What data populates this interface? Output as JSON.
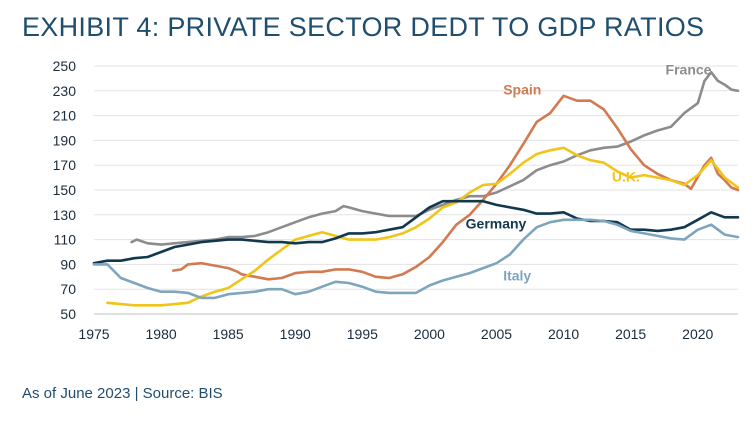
{
  "title": "EXHIBIT 4: PRIVATE SECTOR DEDT TO GDP RATIOS",
  "footnote": "As of June 2023 | Source: BIS",
  "chart_data": {
    "type": "line",
    "title": "EXHIBIT 4: PRIVATE SECTOR DEDT TO GDP RATIOS",
    "xlabel": "",
    "ylabel": "",
    "xlim": [
      1975,
      2023
    ],
    "ylim": [
      50,
      250
    ],
    "x_ticks": [
      "1975",
      "1980",
      "1985",
      "1990",
      "1995",
      "2000",
      "2005",
      "2010",
      "2015",
      "2020"
    ],
    "y_ticks": [
      "50",
      "70",
      "90",
      "110",
      "130",
      "150",
      "170",
      "190",
      "210",
      "230",
      "250"
    ],
    "grid": "horizontal",
    "series": [
      {
        "name": "France",
        "color": "#8c8c8c",
        "points": [
          [
            1977.8,
            108
          ],
          [
            1978.2,
            110
          ],
          [
            1979,
            107
          ],
          [
            1980,
            106
          ],
          [
            1981,
            107
          ],
          [
            1982,
            108
          ],
          [
            1983,
            109
          ],
          [
            1984,
            110
          ],
          [
            1985,
            112
          ],
          [
            1986,
            112
          ],
          [
            1987,
            113
          ],
          [
            1988,
            116
          ],
          [
            1989,
            120
          ],
          [
            1990,
            124
          ],
          [
            1991,
            128
          ],
          [
            1992,
            131
          ],
          [
            1993,
            133
          ],
          [
            1993.6,
            137
          ],
          [
            1994,
            136
          ],
          [
            1995,
            133
          ],
          [
            1996,
            131
          ],
          [
            1997,
            129
          ],
          [
            1998,
            129
          ],
          [
            1999,
            129
          ],
          [
            2000,
            134
          ],
          [
            2001,
            138
          ],
          [
            2002,
            142
          ],
          [
            2003,
            145
          ],
          [
            2004,
            145
          ],
          [
            2005,
            148
          ],
          [
            2006,
            153
          ],
          [
            2007,
            158
          ],
          [
            2008,
            166
          ],
          [
            2009,
            170
          ],
          [
            2010,
            173
          ],
          [
            2011,
            178
          ],
          [
            2012,
            182
          ],
          [
            2013,
            184
          ],
          [
            2014,
            185
          ],
          [
            2015,
            189
          ],
          [
            2016,
            194
          ],
          [
            2017,
            198
          ],
          [
            2018,
            201
          ],
          [
            2019,
            212
          ],
          [
            2020,
            220
          ],
          [
            2020.5,
            238
          ],
          [
            2021,
            245
          ],
          [
            2021.5,
            238
          ],
          [
            2022,
            235
          ],
          [
            2022.5,
            231
          ],
          [
            2023,
            230
          ]
        ]
      },
      {
        "name": "Spain",
        "color": "#d37a50",
        "points": [
          [
            1980.9,
            85
          ],
          [
            1981.5,
            86
          ],
          [
            1982,
            90
          ],
          [
            1983,
            91
          ],
          [
            1984,
            89
          ],
          [
            1985,
            87
          ],
          [
            1985.7,
            84
          ],
          [
            1986,
            82
          ],
          [
            1987,
            80
          ],
          [
            1988,
            78
          ],
          [
            1989,
            79
          ],
          [
            1990,
            83
          ],
          [
            1991,
            84
          ],
          [
            1992,
            84
          ],
          [
            1993,
            86
          ],
          [
            1994,
            86
          ],
          [
            1995,
            84
          ],
          [
            1996,
            80
          ],
          [
            1997,
            79
          ],
          [
            1998,
            82
          ],
          [
            1999,
            88
          ],
          [
            2000,
            96
          ],
          [
            2001,
            108
          ],
          [
            2002,
            122
          ],
          [
            2003,
            130
          ],
          [
            2004,
            142
          ],
          [
            2005,
            155
          ],
          [
            2006,
            170
          ],
          [
            2007,
            187
          ],
          [
            2008,
            205
          ],
          [
            2009,
            212
          ],
          [
            2010,
            226
          ],
          [
            2011,
            222
          ],
          [
            2012,
            222
          ],
          [
            2013,
            215
          ],
          [
            2014,
            200
          ],
          [
            2015,
            183
          ],
          [
            2016,
            170
          ],
          [
            2017,
            163
          ],
          [
            2018,
            158
          ],
          [
            2019,
            155
          ],
          [
            2019.5,
            151
          ],
          [
            2020.5,
            170
          ],
          [
            2021,
            176
          ],
          [
            2021.5,
            163
          ],
          [
            2022,
            158
          ],
          [
            2022.5,
            152
          ],
          [
            2023,
            150
          ]
        ]
      },
      {
        "name": "U.K.",
        "color": "#f0c419",
        "points": [
          [
            1976,
            59
          ],
          [
            1977,
            58
          ],
          [
            1978,
            57
          ],
          [
            1979,
            57
          ],
          [
            1980,
            57
          ],
          [
            1981,
            58
          ],
          [
            1982,
            59
          ],
          [
            1983,
            64
          ],
          [
            1984,
            68
          ],
          [
            1985,
            71
          ],
          [
            1986,
            78
          ],
          [
            1987,
            85
          ],
          [
            1988,
            94
          ],
          [
            1989,
            102
          ],
          [
            1990,
            110
          ],
          [
            1991,
            113
          ],
          [
            1992,
            116
          ],
          [
            1993,
            113
          ],
          [
            1994,
            110
          ],
          [
            1995,
            110
          ],
          [
            1996,
            110
          ],
          [
            1997,
            112
          ],
          [
            1998,
            115
          ],
          [
            1999,
            120
          ],
          [
            2000,
            127
          ],
          [
            2001,
            136
          ],
          [
            2002,
            140
          ],
          [
            2003,
            148
          ],
          [
            2004,
            154
          ],
          [
            2005,
            155
          ],
          [
            2006,
            163
          ],
          [
            2007,
            172
          ],
          [
            2008,
            179
          ],
          [
            2009,
            182
          ],
          [
            2010,
            184
          ],
          [
            2011,
            178
          ],
          [
            2012,
            174
          ],
          [
            2013,
            172
          ],
          [
            2014,
            165
          ],
          [
            2015,
            160
          ],
          [
            2016,
            162
          ],
          [
            2017,
            160
          ],
          [
            2018,
            158
          ],
          [
            2019,
            154
          ],
          [
            2020,
            162
          ],
          [
            2021,
            174
          ],
          [
            2022,
            160
          ],
          [
            2023,
            152
          ]
        ]
      },
      {
        "name": "Germany",
        "color": "#12384f",
        "points": [
          [
            1975,
            91
          ],
          [
            1976,
            93
          ],
          [
            1977,
            93
          ],
          [
            1978,
            95
          ],
          [
            1979,
            96
          ],
          [
            1980,
            100
          ],
          [
            1981,
            104
          ],
          [
            1982,
            106
          ],
          [
            1983,
            108
          ],
          [
            1984,
            109
          ],
          [
            1985,
            110
          ],
          [
            1986,
            110
          ],
          [
            1987,
            109
          ],
          [
            1988,
            108
          ],
          [
            1989,
            108
          ],
          [
            1990,
            107
          ],
          [
            1991,
            108
          ],
          [
            1992,
            108
          ],
          [
            1993,
            111
          ],
          [
            1994,
            115
          ],
          [
            1995,
            115
          ],
          [
            1996,
            116
          ],
          [
            1997,
            118
          ],
          [
            1998,
            120
          ],
          [
            1999,
            128
          ],
          [
            2000,
            136
          ],
          [
            2001,
            141
          ],
          [
            2002,
            141
          ],
          [
            2003,
            141
          ],
          [
            2004,
            141
          ],
          [
            2005,
            138
          ],
          [
            2006,
            136
          ],
          [
            2007,
            134
          ],
          [
            2008,
            131
          ],
          [
            2009,
            131
          ],
          [
            2010,
            132
          ],
          [
            2011,
            127
          ],
          [
            2012,
            125
          ],
          [
            2013,
            125
          ],
          [
            2014,
            124
          ],
          [
            2015,
            118
          ],
          [
            2016,
            118
          ],
          [
            2017,
            117
          ],
          [
            2018,
            118
          ],
          [
            2019,
            120
          ],
          [
            2020,
            126
          ],
          [
            2021,
            132
          ],
          [
            2022,
            128
          ],
          [
            2023,
            128
          ]
        ]
      },
      {
        "name": "Italy",
        "color": "#7ea5bd",
        "points": [
          [
            1975,
            90
          ],
          [
            1976,
            90
          ],
          [
            1977,
            79
          ],
          [
            1978,
            75
          ],
          [
            1979,
            71
          ],
          [
            1980,
            68
          ],
          [
            1981,
            68
          ],
          [
            1982,
            67
          ],
          [
            1983,
            63
          ],
          [
            1984,
            63
          ],
          [
            1985,
            66
          ],
          [
            1986,
            67
          ],
          [
            1987,
            68
          ],
          [
            1988,
            70
          ],
          [
            1989,
            70
          ],
          [
            1990,
            66
          ],
          [
            1991,
            68
          ],
          [
            1992,
            72
          ],
          [
            1993,
            76
          ],
          [
            1994,
            75
          ],
          [
            1995,
            72
          ],
          [
            1996,
            68
          ],
          [
            1997,
            67
          ],
          [
            1998,
            67
          ],
          [
            1999,
            67
          ],
          [
            2000,
            73
          ],
          [
            2001,
            77
          ],
          [
            2002,
            80
          ],
          [
            2003,
            83
          ],
          [
            2004,
            87
          ],
          [
            2005,
            91
          ],
          [
            2006,
            98
          ],
          [
            2007,
            110
          ],
          [
            2008,
            120
          ],
          [
            2009,
            124
          ],
          [
            2010,
            126
          ],
          [
            2011,
            126
          ],
          [
            2012,
            126
          ],
          [
            2013,
            125
          ],
          [
            2014,
            122
          ],
          [
            2015,
            117
          ],
          [
            2016,
            115
          ],
          [
            2017,
            113
          ],
          [
            2018,
            111
          ],
          [
            2019,
            110
          ],
          [
            2020,
            118
          ],
          [
            2021,
            122
          ],
          [
            2022,
            114
          ],
          [
            2023,
            112
          ]
        ]
      }
    ],
    "annotations": [
      {
        "series": "France",
        "text": "France",
        "x": 2017.6,
        "y": 243
      },
      {
        "series": "Spain",
        "text": "Spain",
        "x": 2005.5,
        "y": 227
      },
      {
        "series": "U.K.",
        "text": "U.K.",
        "x": 2013.6,
        "y": 157
      },
      {
        "series": "Germany",
        "text": "Germany",
        "x": 2002.7,
        "y": 119
      },
      {
        "series": "Italy",
        "text": "Italy",
        "x": 2005.5,
        "y": 77
      }
    ]
  }
}
